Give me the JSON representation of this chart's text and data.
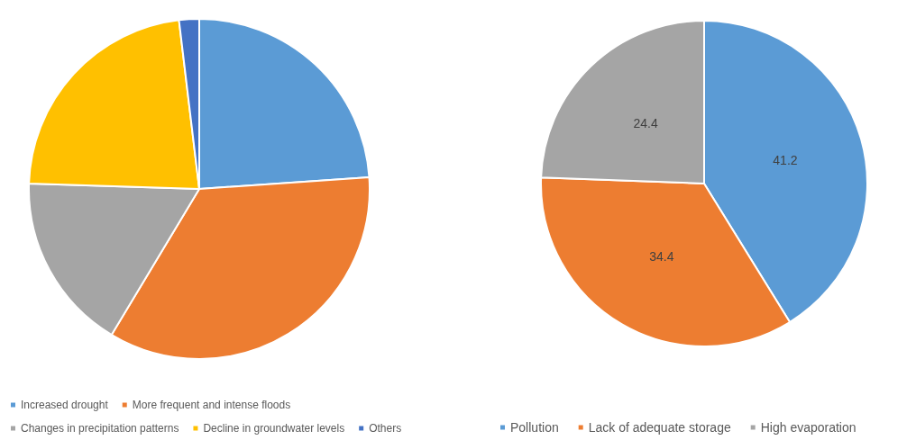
{
  "chart_data": [
    {
      "type": "pie",
      "categories": [
        "Increased drought",
        "More frequent and intense floods",
        "Changes in precipitation patterns",
        "Decline in groundwater levels",
        "Others"
      ],
      "values": [
        23.9,
        34.7,
        16.9,
        22.6,
        1.9
      ],
      "colors": [
        "#5b9bd5",
        "#ed7d31",
        "#a5a5a5",
        "#ffc000",
        "#4472c4"
      ],
      "legend": "bottom"
    },
    {
      "type": "pie",
      "categories": [
        "Pollution",
        "Lack of adequate storage",
        "High evaporation"
      ],
      "values": [
        41.2,
        34.4,
        24.4
      ],
      "colors": [
        "#5b9bd5",
        "#ed7d31",
        "#a5a5a5"
      ],
      "legend": "bottom",
      "data_labels": true
    }
  ]
}
